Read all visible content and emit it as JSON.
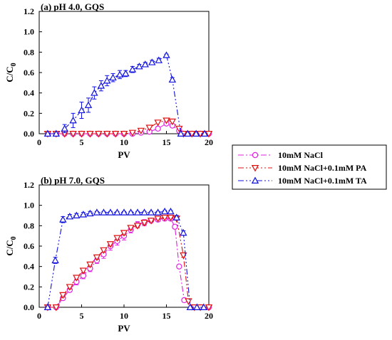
{
  "chart_data": [
    {
      "type": "line",
      "title": "(a) pH 4.0, GQS",
      "xlabel": "PV",
      "ylabel_main": "C/C",
      "ylabel_sub": "0",
      "xlim": [
        0,
        20
      ],
      "ylim": [
        0,
        1.2
      ],
      "xticks": [
        "0",
        "5",
        "10",
        "15",
        "20"
      ],
      "yticks": [
        "0.0",
        "0.2",
        "0.4",
        "0.6",
        "0.8",
        "1.0",
        "1.2"
      ],
      "series": [
        {
          "name": "10mM NaCl",
          "color": "#e020e0",
          "marker": "circle",
          "x": [
            1,
            2,
            3,
            4,
            5,
            6,
            7,
            8,
            9,
            10,
            11,
            12,
            13,
            14,
            15,
            15.7,
            16.5,
            17,
            18,
            19,
            20
          ],
          "y": [
            0,
            0,
            0,
            0,
            0,
            0,
            0,
            0,
            0,
            0,
            0,
            0.01,
            0.02,
            0.05,
            0.1,
            0.08,
            0.03,
            0,
            0,
            0,
            0
          ],
          "err": [
            0,
            0,
            0,
            0,
            0,
            0,
            0,
            0,
            0,
            0,
            0,
            0,
            0,
            0,
            0.01,
            0,
            0,
            0,
            0,
            0,
            0
          ]
        },
        {
          "name": "10mM NaCl+0.1mM PA",
          "color": "#e01010",
          "marker": "triangle-down",
          "x": [
            1,
            2,
            3,
            4,
            5,
            6,
            7,
            8,
            9,
            10,
            11,
            12,
            13,
            14,
            15,
            15.7,
            16.5,
            17,
            18,
            19,
            20
          ],
          "y": [
            0,
            0,
            0,
            0,
            0,
            0,
            0,
            0,
            0,
            0,
            0.01,
            0.03,
            0.06,
            0.11,
            0.13,
            0.12,
            0.05,
            0,
            0,
            0,
            0
          ],
          "err": [
            0,
            0,
            0,
            0,
            0,
            0,
            0,
            0,
            0,
            0,
            0,
            0,
            0,
            0,
            0,
            0,
            0,
            0,
            0,
            0,
            0
          ]
        },
        {
          "name": "10mM NaCl+0.1mM TA",
          "color": "#1010e0",
          "marker": "triangle-up",
          "x": [
            1,
            2,
            3,
            4,
            5,
            5.8,
            6.5,
            7.3,
            8,
            8.7,
            9.5,
            10.2,
            11,
            11.8,
            12.5,
            13.3,
            14.1,
            15,
            15.7,
            16.7,
            17.5,
            18.5,
            19.5
          ],
          "y": [
            0,
            0,
            0.05,
            0.13,
            0.23,
            0.28,
            0.4,
            0.47,
            0.52,
            0.55,
            0.58,
            0.59,
            0.63,
            0.66,
            0.68,
            0.7,
            0.72,
            0.77,
            0.53,
            0,
            0,
            0,
            0
          ],
          "err": [
            0,
            0,
            0.04,
            0.07,
            0.08,
            0.07,
            0.06,
            0.05,
            0.05,
            0.04,
            0.04,
            0.03,
            0.03,
            0.02,
            0.02,
            0.02,
            0.02,
            0.01,
            0.02,
            0,
            0,
            0,
            0
          ]
        }
      ]
    },
    {
      "type": "line",
      "title": "(b) pH 7.0, GQS",
      "xlabel": "PV",
      "ylabel_main": "C/C",
      "ylabel_sub": "0",
      "xlim": [
        0,
        20
      ],
      "ylim": [
        0,
        1.2
      ],
      "xticks": [
        "0",
        "5",
        "10",
        "15",
        "20"
      ],
      "yticks": [
        "0.0",
        "0.2",
        "0.4",
        "0.6",
        "0.8",
        "1.0",
        "1.2"
      ],
      "series": [
        {
          "name": "10mM NaCl",
          "color": "#e020e0",
          "marker": "circle",
          "x": [
            1,
            2,
            2.8,
            3.6,
            4.4,
            5.2,
            6,
            6.8,
            7.6,
            8.4,
            9.2,
            10,
            10.8,
            11.6,
            12.4,
            13.2,
            14,
            14.8,
            15.5,
            16,
            16.5,
            17.1,
            18,
            19,
            20
          ],
          "y": [
            0,
            0,
            0.09,
            0.17,
            0.25,
            0.31,
            0.38,
            0.46,
            0.52,
            0.6,
            0.65,
            0.7,
            0.76,
            0.81,
            0.83,
            0.85,
            0.86,
            0.87,
            0.87,
            0.79,
            0.4,
            0.07,
            0,
            0,
            0
          ],
          "err": [
            0,
            0,
            0.02,
            0.02,
            0.03,
            0.03,
            0.03,
            0.03,
            0.04,
            0.04,
            0.04,
            0.04,
            0.03,
            0.03,
            0.03,
            0.02,
            0.02,
            0.02,
            0.02,
            0.02,
            0,
            0.02,
            0,
            0,
            0
          ]
        },
        {
          "name": "10mM NaCl+0.1mM PA",
          "color": "#e01010",
          "marker": "triangle-down",
          "x": [
            1,
            2,
            2.8,
            3.6,
            4.4,
            5.2,
            6,
            6.8,
            7.6,
            8.4,
            9.2,
            10,
            10.8,
            11.6,
            12.4,
            13.2,
            14,
            14.8,
            15.5,
            16.2,
            17,
            17.6,
            18.3,
            19,
            20
          ],
          "y": [
            0,
            0,
            0.12,
            0.2,
            0.29,
            0.36,
            0.42,
            0.49,
            0.56,
            0.62,
            0.68,
            0.73,
            0.78,
            0.8,
            0.83,
            0.85,
            0.87,
            0.88,
            0.88,
            0.87,
            0.51,
            0.06,
            0,
            0,
            0
          ],
          "err": [
            0,
            0,
            0.02,
            0.02,
            0.02,
            0.02,
            0.02,
            0.02,
            0.02,
            0.02,
            0.02,
            0.02,
            0.02,
            0.02,
            0.02,
            0.01,
            0.01,
            0.01,
            0.01,
            0.01,
            0.02,
            0,
            0,
            0,
            0
          ]
        },
        {
          "name": "10mM NaCl+0.1mM TA",
          "color": "#1010e0",
          "marker": "triangle-up",
          "x": [
            1,
            1.9,
            2.8,
            3.6,
            4.4,
            5.2,
            6,
            6.8,
            7.6,
            8.4,
            9.2,
            10,
            10.8,
            11.6,
            12.4,
            13.2,
            14,
            14.8,
            15.5,
            16.2,
            17,
            17.8,
            18.6,
            19.4
          ],
          "y": [
            0,
            0.46,
            0.86,
            0.89,
            0.9,
            0.91,
            0.92,
            0.93,
            0.93,
            0.93,
            0.93,
            0.93,
            0.93,
            0.93,
            0.93,
            0.93,
            0.93,
            0.94,
            0.94,
            0.88,
            0.73,
            0,
            0,
            0
          ],
          "err": [
            0,
            0.03,
            0.03,
            0.02,
            0.02,
            0.02,
            0.02,
            0.01,
            0.01,
            0.01,
            0.01,
            0.01,
            0.01,
            0.01,
            0.01,
            0.01,
            0.01,
            0.01,
            0.01,
            0.02,
            0.02,
            0,
            0,
            0
          ]
        }
      ]
    }
  ],
  "legend": {
    "entries": [
      "10mM NaCl",
      "10mM NaCl+0.1mM PA",
      "10mM NaCl+0.1mM TA"
    ],
    "position": "right-middle"
  }
}
